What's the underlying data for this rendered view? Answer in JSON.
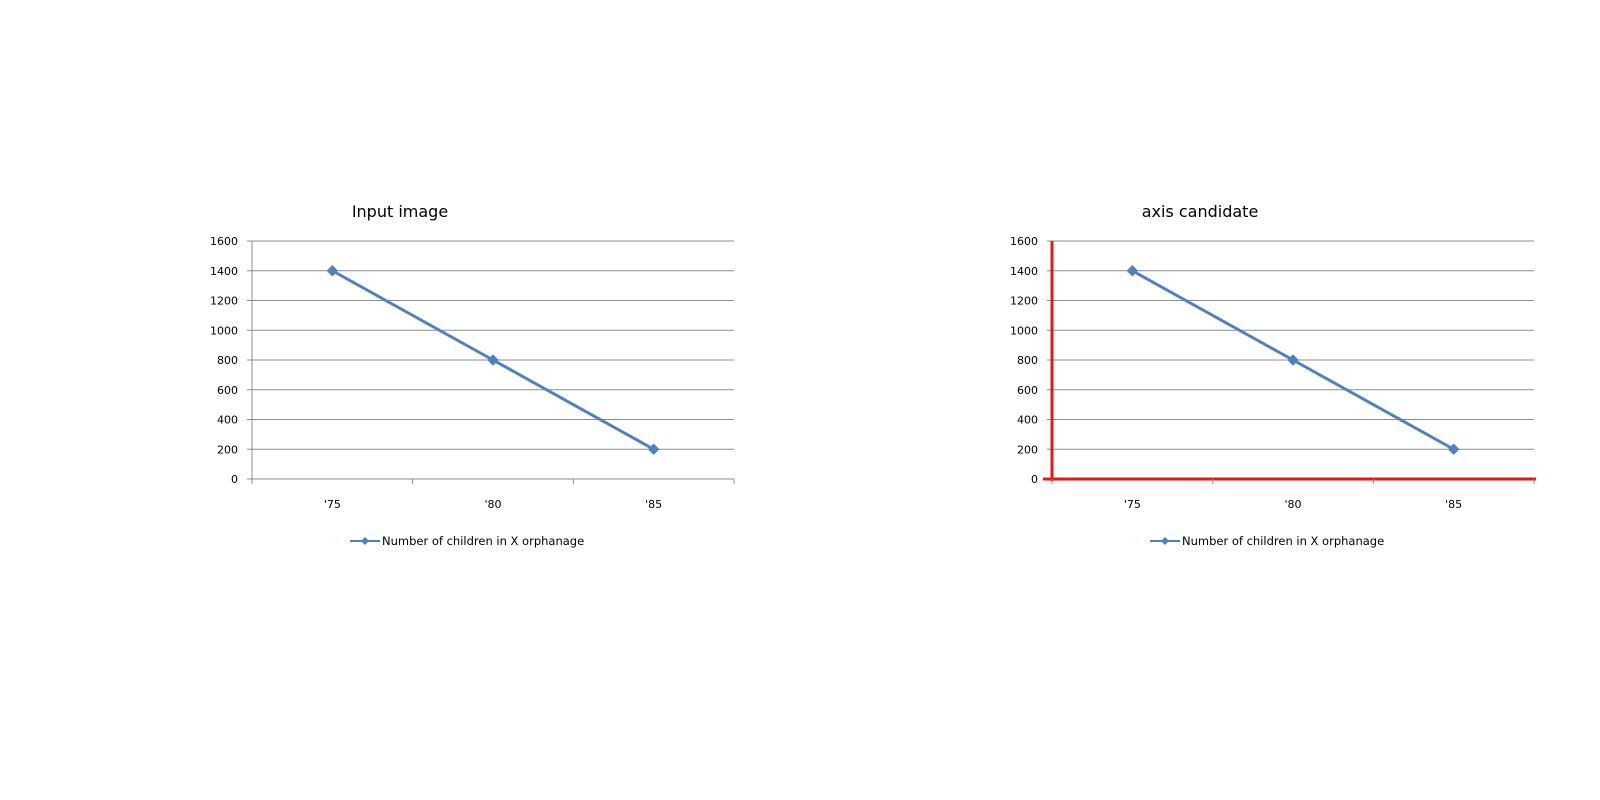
{
  "panels": [
    {
      "title": "Input image",
      "highlight_axes": false
    },
    {
      "title": "axis candidate",
      "highlight_axes": true
    }
  ],
  "colors": {
    "series": "#4f81bd",
    "grid": "#8c8c8c",
    "axis": "#8c8c8c",
    "highlight": "#e31a1c"
  },
  "chart_data": [
    {
      "type": "line",
      "title": "",
      "categories": [
        "'75",
        "'80",
        "'85"
      ],
      "series": [
        {
          "name": "Number of children in X orphanage",
          "values": [
            1400,
            800,
            200
          ]
        }
      ],
      "ylim": [
        0,
        1600
      ],
      "yticks": [
        0,
        200,
        400,
        600,
        800,
        1000,
        1200,
        1400,
        1600
      ],
      "grid": true,
      "legend": "bottom"
    },
    {
      "type": "line",
      "title": "",
      "categories": [
        "'75",
        "'80",
        "'85"
      ],
      "series": [
        {
          "name": "Number of children in X orphanage",
          "values": [
            1400,
            800,
            200
          ]
        }
      ],
      "ylim": [
        0,
        1600
      ],
      "yticks": [
        0,
        200,
        400,
        600,
        800,
        1000,
        1200,
        1400,
        1600
      ],
      "grid": true,
      "legend": "bottom"
    }
  ]
}
